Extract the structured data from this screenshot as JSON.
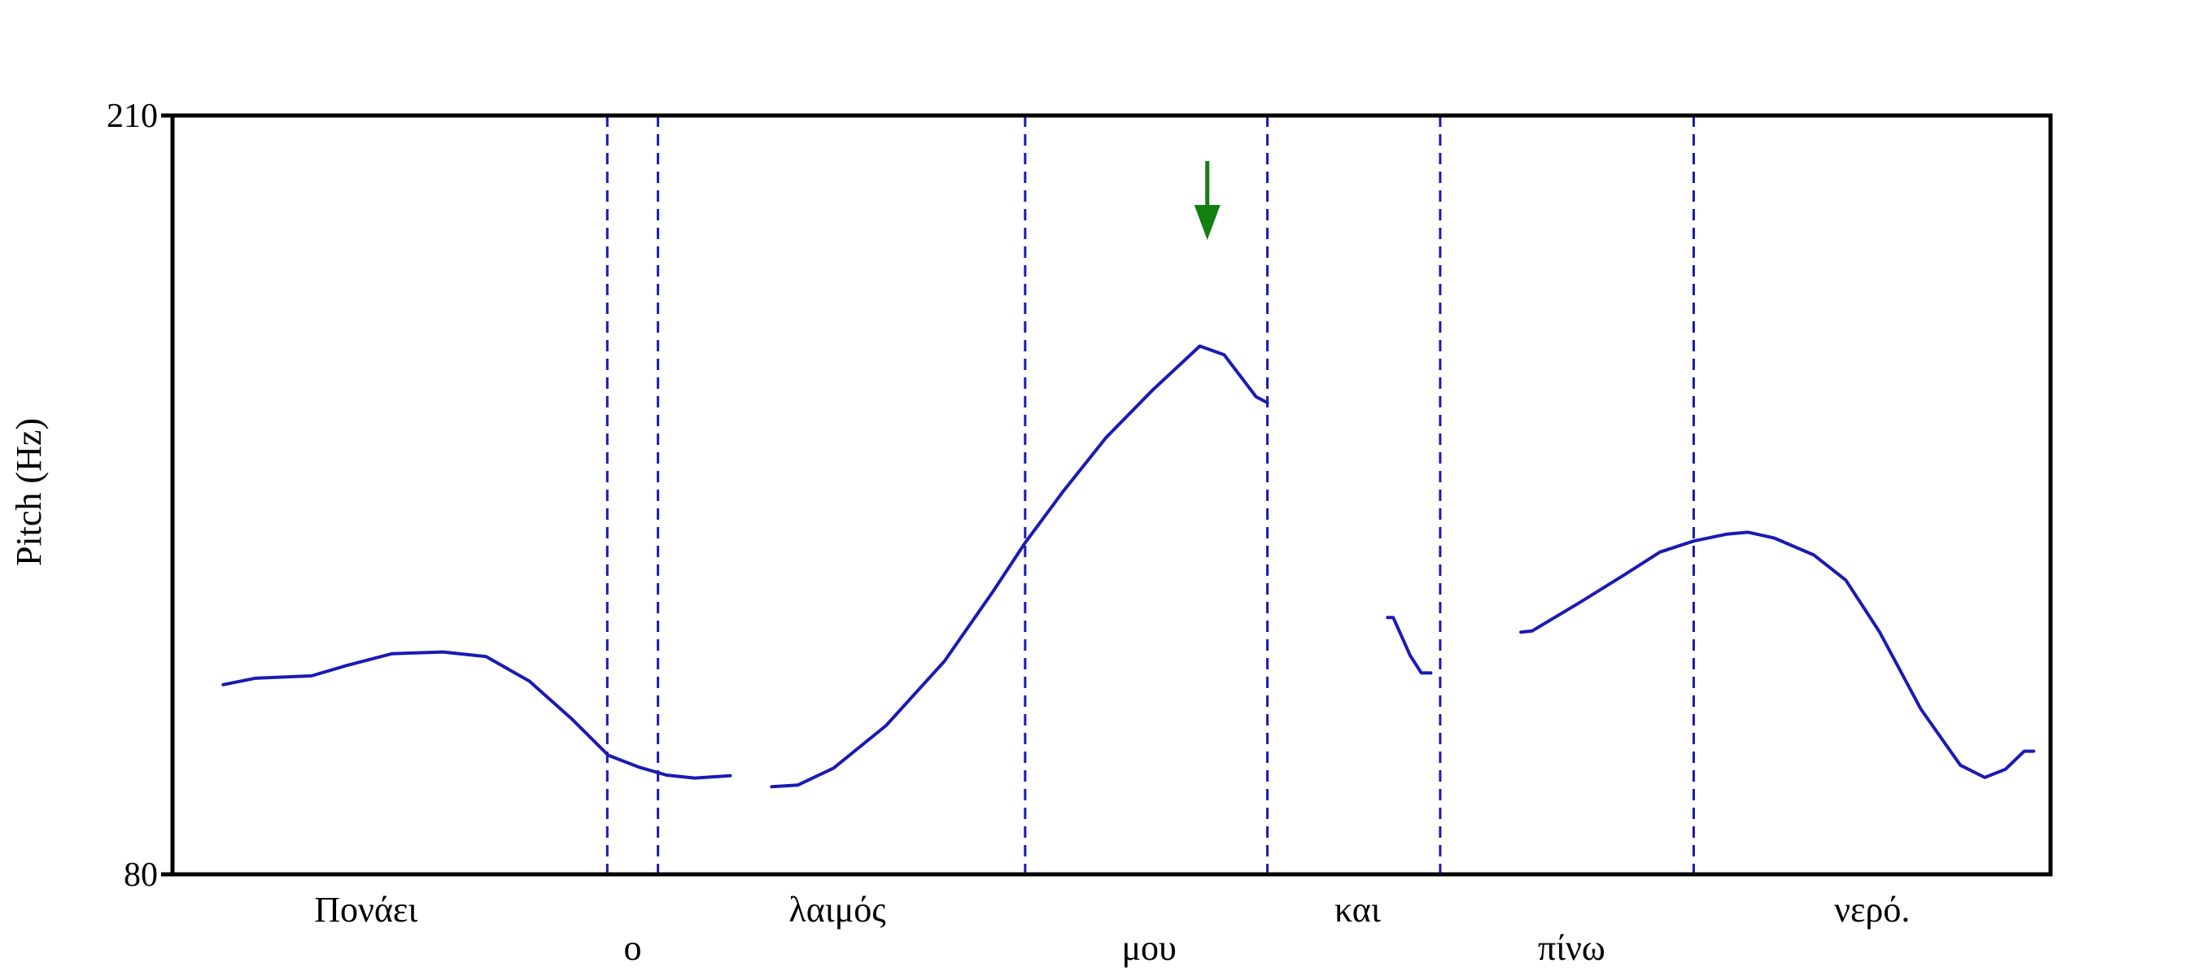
{
  "chart_data": {
    "type": "line",
    "ylabel": "Pitch (Hz)",
    "xlabel": "",
    "ylim": [
      80,
      210
    ],
    "y_ticks": [
      "210",
      "80"
    ],
    "xlim": [
      0,
      100
    ],
    "grid": false,
    "colors": {
      "contour": "#1a1ab4",
      "boundary": "#1a1ab4",
      "marker": "#118011",
      "axis": "#000000"
    },
    "boundaries": [
      23.15,
      25.85,
      45.4,
      58.3,
      67.5,
      81.0
    ],
    "words": [
      {
        "text": "Πονάει",
        "x": 10.3,
        "row": 1
      },
      {
        "text": "ο",
        "x": 24.5,
        "row": 2
      },
      {
        "text": "λαιμός",
        "x": 35.4,
        "row": 1
      },
      {
        "text": "μου",
        "x": 52.0,
        "row": 2
      },
      {
        "text": "και",
        "x": 63.1,
        "row": 1
      },
      {
        "text": "πίνω",
        "x": 74.5,
        "row": 2
      },
      {
        "text": "νερό.",
        "x": 90.5,
        "row": 1
      }
    ],
    "series": [
      {
        "points": [
          [
            2.7,
            112.5
          ],
          [
            4.4,
            113.6
          ],
          [
            7.4,
            114
          ],
          [
            9.3,
            115.8
          ],
          [
            11.7,
            117.8
          ],
          [
            14.4,
            118.1
          ],
          [
            16.7,
            117.3
          ],
          [
            19.0,
            113.1
          ],
          [
            21.3,
            106.5
          ],
          [
            23.2,
            100.4
          ],
          [
            24.8,
            98.4
          ],
          [
            26.3,
            97
          ],
          [
            27.8,
            96.5
          ],
          [
            29.7,
            96.9
          ]
        ]
      },
      {
        "points": [
          [
            31.9,
            95
          ],
          [
            33.3,
            95.3
          ],
          [
            35.2,
            98.2
          ],
          [
            38.0,
            105.5
          ],
          [
            41.1,
            116.5
          ],
          [
            43.7,
            128.5
          ],
          [
            45.4,
            136.8
          ],
          [
            47.4,
            145.5
          ],
          [
            49.7,
            154.8
          ],
          [
            52.2,
            163
          ],
          [
            54.7,
            170.5
          ],
          [
            56.0,
            169
          ],
          [
            57.7,
            161.8
          ],
          [
            58.3,
            160.8
          ]
        ]
      },
      {
        "points": [
          [
            64.7,
            124
          ],
          [
            65.0,
            124
          ],
          [
            65.9,
            117.5
          ],
          [
            66.5,
            114.5
          ],
          [
            67.0,
            114.5
          ]
        ]
      },
      {
        "points": [
          [
            71.8,
            121.5
          ],
          [
            72.4,
            121.7
          ],
          [
            75.0,
            126.7
          ],
          [
            77.3,
            131.3
          ],
          [
            79.2,
            135.2
          ],
          [
            81.0,
            137.1
          ],
          [
            82.8,
            138.3
          ],
          [
            83.9,
            138.6
          ],
          [
            85.3,
            137.6
          ],
          [
            87.4,
            134.7
          ],
          [
            89.1,
            130.4
          ],
          [
            90.9,
            121.5
          ],
          [
            93.1,
            108.3
          ],
          [
            95.2,
            98.7
          ],
          [
            96.5,
            96.6
          ],
          [
            97.6,
            98
          ],
          [
            98.6,
            101.1
          ],
          [
            99.1,
            101.1
          ]
        ]
      }
    ],
    "annotations": [
      {
        "type": "arrow-down",
        "x": 55.1,
        "color": "#118011"
      }
    ]
  }
}
